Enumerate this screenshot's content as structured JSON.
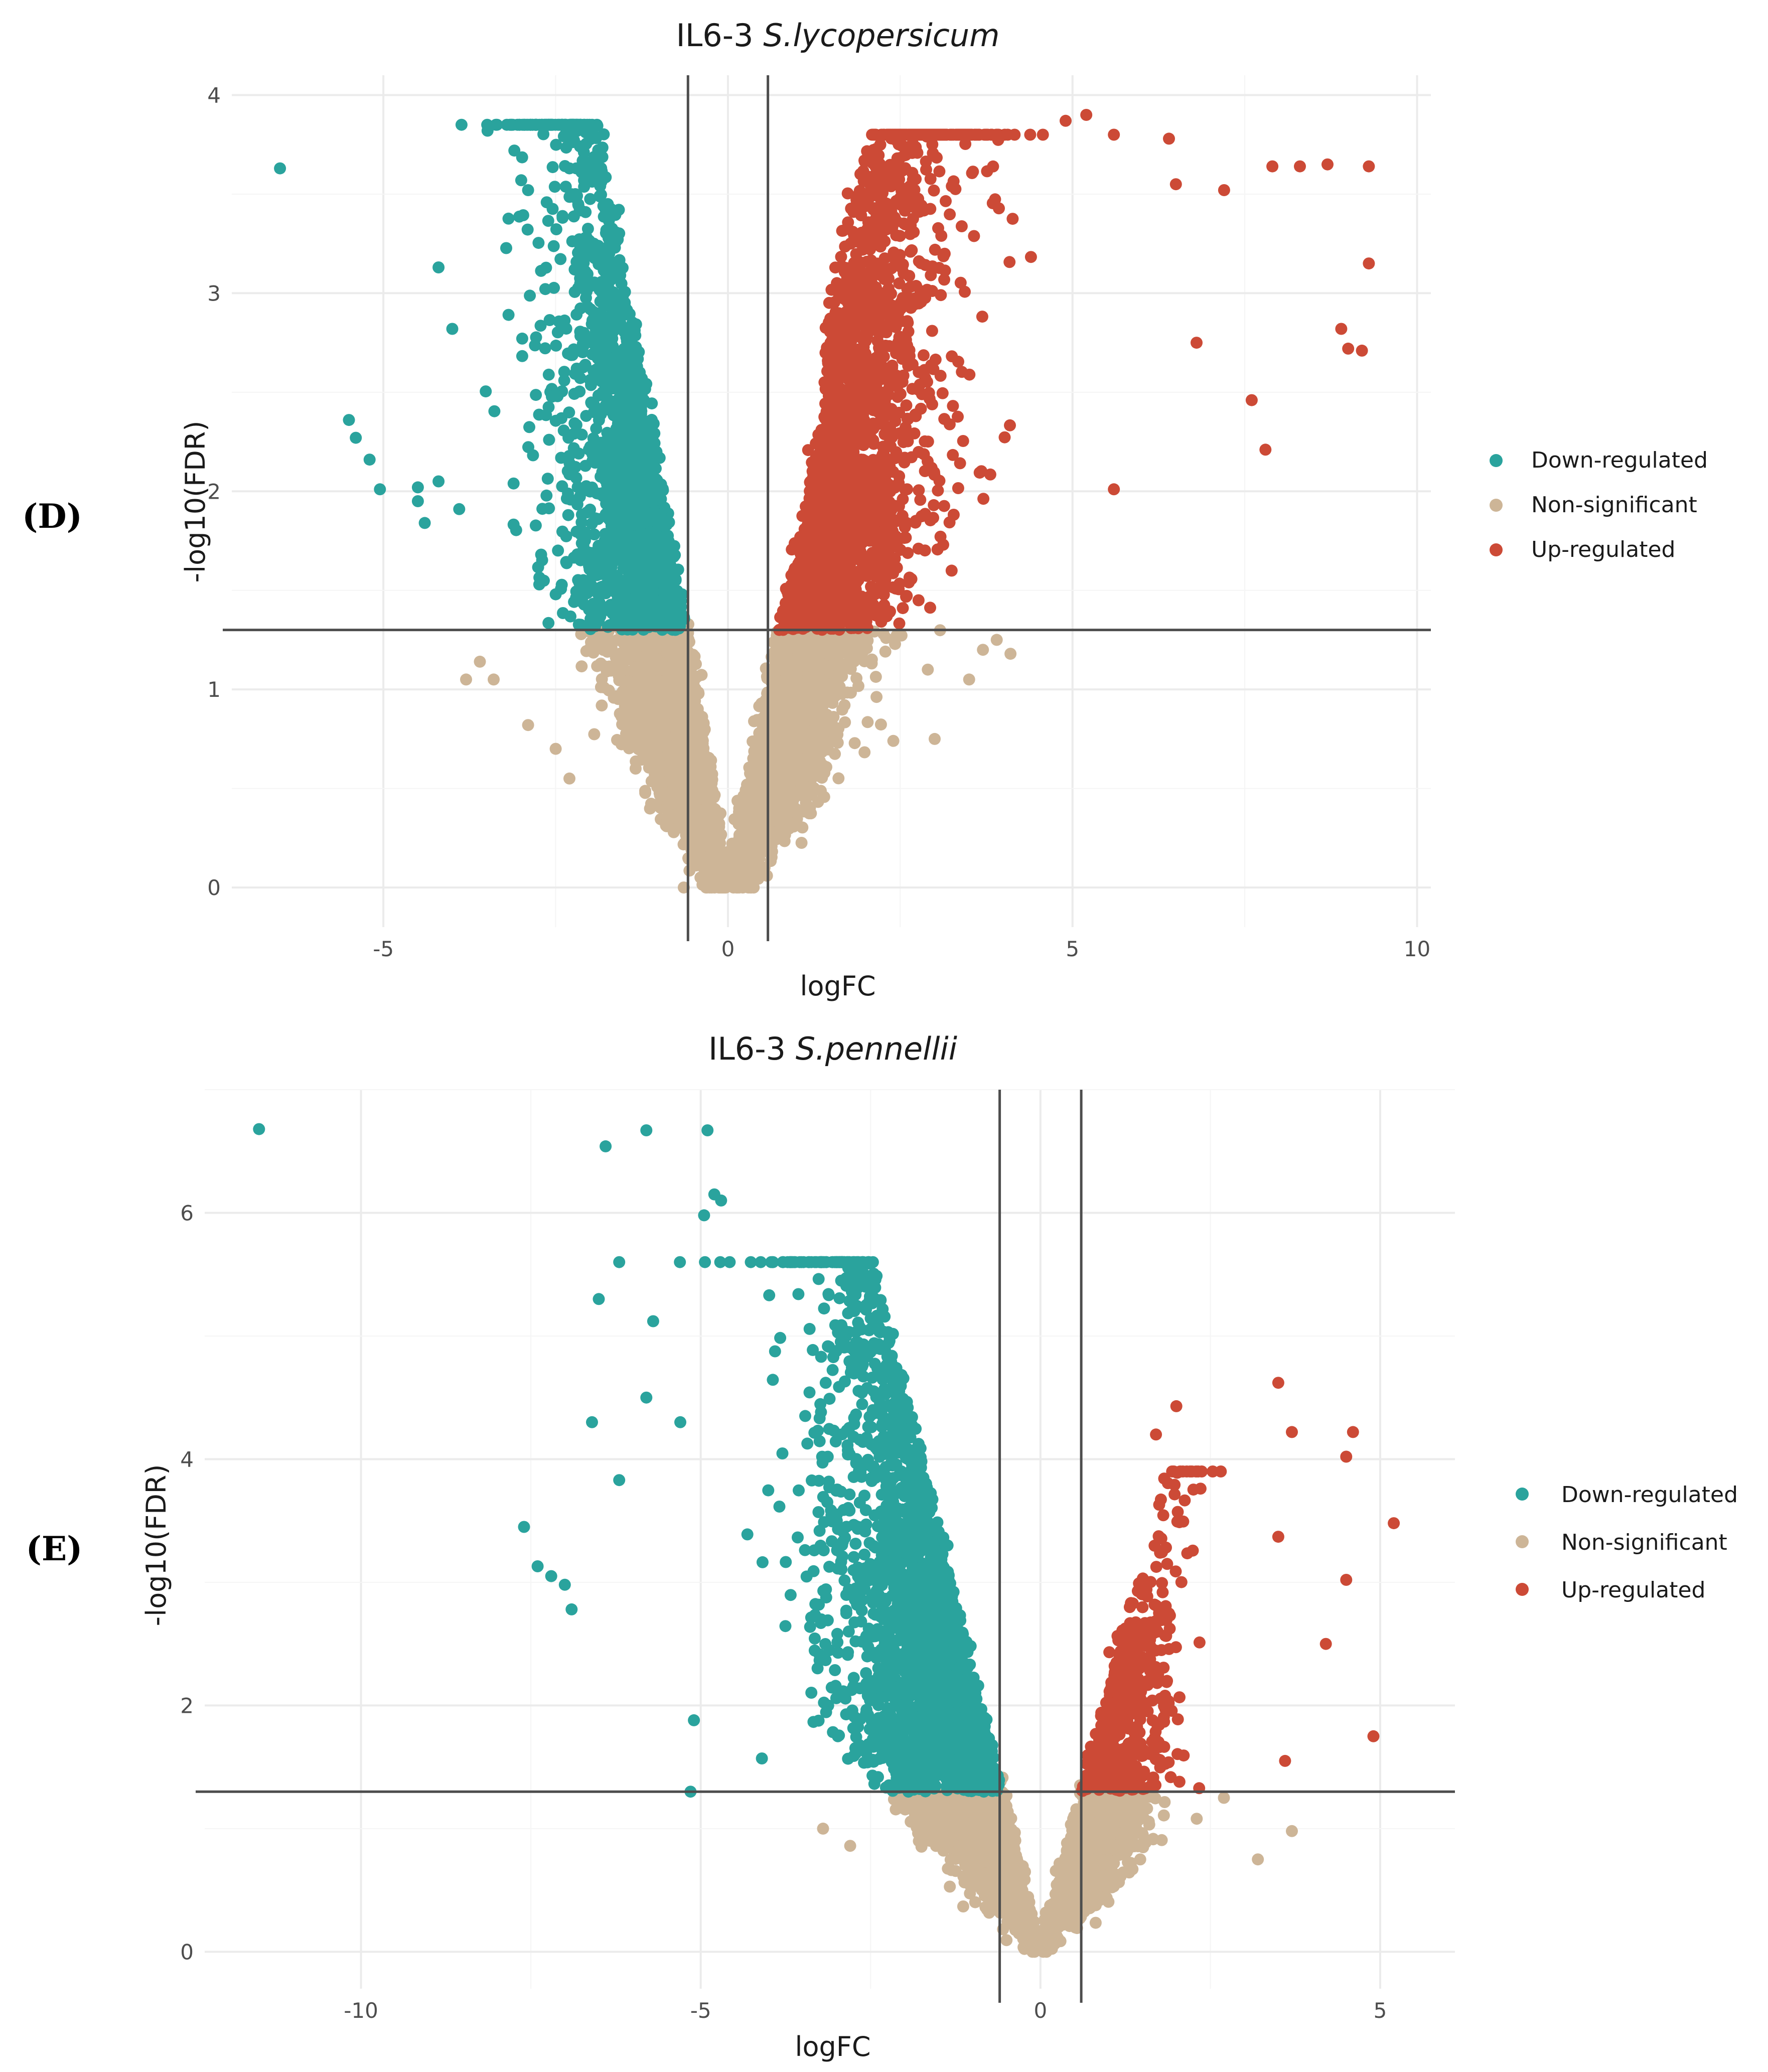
{
  "colors": {
    "down": "#2aa39d",
    "ns": "#cdb597",
    "up": "#cc4a36",
    "refline": "#4d4d4d",
    "grid_major": "#ebebeb",
    "grid_minor": "#f5f5f5"
  },
  "legend": {
    "down": "Down-regulated",
    "ns": "Non-significant",
    "up": "Up-regulated"
  },
  "chart_data": [
    {
      "type": "scatter",
      "panel_label": "(D)",
      "title_prefix": "IL6-3 ",
      "title_species": "S.lycopersicum",
      "xlabel": "logFC",
      "ylabel": "-log10(FDR)",
      "xlim": [
        -7.2,
        10.2
      ],
      "ylim": [
        -0.2,
        4.1
      ],
      "xticks": [
        -5,
        0,
        5,
        10
      ],
      "xtick_labels": [
        "-5",
        "0",
        "5",
        "10"
      ],
      "yticks": [
        0,
        1,
        2,
        3,
        4
      ],
      "ytick_labels": [
        "0",
        "1",
        "2",
        "3",
        "4"
      ],
      "logfc_thresholds": [
        -0.58,
        0.58
      ],
      "fdr_threshold": 1.3,
      "grid": true,
      "legend_position": "right",
      "series": [
        {
          "name": "Down-regulated",
          "key": "down",
          "envelope_shape": "top-left lobe",
          "sample_count": 2100,
          "points": [
            [
              -6.5,
              3.63
            ],
            [
              -5.5,
              2.36
            ],
            [
              -5.4,
              2.27
            ],
            [
              -5.2,
              2.16
            ],
            [
              -5.05,
              2.01
            ],
            [
              -4.5,
              2.02
            ],
            [
              -4.5,
              1.95
            ],
            [
              -4.4,
              1.84
            ],
            [
              -4.2,
              3.13
            ],
            [
              -4.2,
              2.05
            ],
            [
              -4,
              2.82
            ],
            [
              -3.9,
              1.91
            ],
            [
              -3.1,
              3.72
            ],
            [
              -3,
              3.57
            ],
            [
              -2.9,
              3.52
            ],
            [
              -2.5,
              1.48
            ],
            [
              -2.3,
              3.63
            ],
            [
              -2.2,
              3.63
            ],
            [
              -2.15,
              3.42
            ]
          ]
        },
        {
          "name": "Non-significant",
          "key": "ns",
          "envelope_shape": "V-shaped cone",
          "sample_count": 3200,
          "points": [
            [
              -3.8,
              1.05
            ],
            [
              -3.6,
              1.14
            ],
            [
              -3.4,
              1.05
            ],
            [
              -2.9,
              0.82
            ],
            [
              -2.5,
              0.7
            ],
            [
              -2.3,
              0.55
            ],
            [
              2.4,
              0.74
            ],
            [
              2.9,
              1.1
            ],
            [
              3,
              0.75
            ],
            [
              3.5,
              1.05
            ],
            [
              3.7,
              1.2
            ],
            [
              3.9,
              1.25
            ],
            [
              4.1,
              1.18
            ]
          ]
        },
        {
          "name": "Up-regulated",
          "key": "up",
          "envelope_shape": "top-right lobe",
          "sample_count": 2700,
          "points": [
            [
              4.9,
              3.87
            ],
            [
              5.2,
              3.9
            ],
            [
              5.6,
              3.8
            ],
            [
              5.6,
              2.01
            ],
            [
              6.4,
              3.78
            ],
            [
              6.5,
              3.55
            ],
            [
              6.8,
              2.75
            ],
            [
              7.2,
              3.52
            ],
            [
              7.6,
              2.46
            ],
            [
              7.8,
              2.21
            ],
            [
              7.9,
              3.64
            ],
            [
              8.3,
              3.64
            ],
            [
              8.7,
              3.65
            ],
            [
              8.9,
              2.82
            ],
            [
              9,
              2.72
            ],
            [
              9.2,
              2.71
            ],
            [
              9.3,
              3.64
            ],
            [
              9.3,
              3.15
            ]
          ]
        }
      ]
    },
    {
      "type": "scatter",
      "panel_label": "(E)",
      "title_prefix": "IL6-3 ",
      "title_species": "S.pennellii",
      "xlabel": "logFC",
      "ylabel": "-log10(FDR)",
      "xlim": [
        -12.3,
        6.1
      ],
      "ylim": [
        -0.3,
        7
      ],
      "xticks": [
        -10,
        -5,
        0,
        5
      ],
      "xtick_labels": [
        "-10",
        "-5",
        "0",
        "5"
      ],
      "yticks": [
        0,
        2,
        4,
        6
      ],
      "ytick_labels": [
        "0",
        "2",
        "4",
        "6"
      ],
      "logfc_thresholds": [
        -0.6,
        0.6
      ],
      "fdr_threshold": 1.3,
      "grid": true,
      "legend_position": "right",
      "series": [
        {
          "name": "Down-regulated",
          "key": "down",
          "envelope_shape": "top-left lobe",
          "sample_count": 1000,
          "points": [
            [
              -11.5,
              6.68
            ],
            [
              -7.6,
              3.45
            ],
            [
              -7.4,
              3.13
            ],
            [
              -7.2,
              3.05
            ],
            [
              -7,
              2.98
            ],
            [
              -6.9,
              2.78
            ],
            [
              -6.6,
              4.3
            ],
            [
              -6.5,
              5.3
            ],
            [
              -6.4,
              6.54
            ],
            [
              -6.2,
              5.6
            ],
            [
              -6.2,
              3.83
            ],
            [
              -5.8,
              4.5
            ],
            [
              -5.7,
              5.12
            ],
            [
              -5.8,
              6.67
            ],
            [
              -5.3,
              4.3
            ],
            [
              -5.1,
              1.88
            ],
            [
              -5.15,
              1.3
            ],
            [
              -4.9,
              6.67
            ],
            [
              -4.95,
              5.98
            ],
            [
              -4.8,
              6.15
            ],
            [
              -4.7,
              6.1
            ],
            [
              -4.1,
              1.57
            ]
          ]
        },
        {
          "name": "Non-significant",
          "key": "ns",
          "envelope_shape": "V-shaped cone",
          "sample_count": 2600,
          "points": [
            [
              3.2,
              0.75
            ],
            [
              3.7,
              0.98
            ],
            [
              2.3,
              1.08
            ],
            [
              2.7,
              1.25
            ],
            [
              -2.8,
              0.86
            ],
            [
              -3.2,
              1.0
            ]
          ]
        },
        {
          "name": "Up-regulated",
          "key": "up",
          "envelope_shape": "top-right lobe",
          "sample_count": 1100,
          "points": [
            [
              1.7,
              4.2
            ],
            [
              2.0,
              4.43
            ],
            [
              3.5,
              4.62
            ],
            [
              3.7,
              4.22
            ],
            [
              4.6,
              4.22
            ],
            [
              4.5,
              4.02
            ],
            [
              4.5,
              3.02
            ],
            [
              5.2,
              3.48
            ],
            [
              4.9,
              1.75
            ],
            [
              3.5,
              3.37
            ],
            [
              3.6,
              1.55
            ],
            [
              4.2,
              2.5
            ]
          ]
        }
      ]
    }
  ]
}
